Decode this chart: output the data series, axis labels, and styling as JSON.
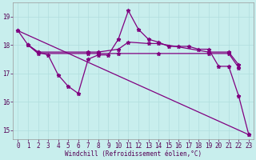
{
  "background_color": "#c8eeed",
  "line_color": "#800080",
  "grid_color": "#b0dede",
  "xlabel": "Windchill (Refroidissement éolien,°C)",
  "xlim": [
    -0.5,
    23.5
  ],
  "ylim": [
    14.7,
    19.5
  ],
  "yticks": [
    15,
    16,
    17,
    18,
    19
  ],
  "xticks": [
    0,
    1,
    2,
    3,
    4,
    5,
    6,
    7,
    8,
    9,
    10,
    11,
    12,
    13,
    14,
    15,
    16,
    17,
    18,
    19,
    20,
    21,
    22,
    23
  ],
  "series1_x": [
    0,
    1,
    2,
    3,
    4,
    5,
    6,
    7,
    8,
    9,
    10,
    11,
    12,
    13,
    14,
    15,
    16,
    17,
    18,
    19,
    20,
    21,
    22,
    23
  ],
  "series1_y": [
    18.5,
    18.0,
    17.75,
    17.65,
    16.95,
    16.55,
    16.3,
    17.5,
    17.65,
    17.65,
    18.2,
    19.2,
    18.55,
    18.2,
    18.1,
    17.95,
    17.95,
    17.95,
    17.85,
    17.85,
    17.25,
    17.25,
    16.2,
    14.85
  ],
  "series2_x": [
    1,
    2,
    7,
    8,
    10,
    11,
    13,
    14,
    19,
    21,
    22
  ],
  "series2_y": [
    18.0,
    17.75,
    17.75,
    17.75,
    17.85,
    18.1,
    18.05,
    18.05,
    17.75,
    17.75,
    17.3
  ],
  "series3_x": [
    1,
    2,
    7,
    8,
    10,
    14,
    19,
    21,
    22
  ],
  "series3_y": [
    18.0,
    17.7,
    17.7,
    17.7,
    17.7,
    17.7,
    17.7,
    17.7,
    17.2
  ],
  "series4_x": [
    0,
    23
  ],
  "series4_y": [
    18.5,
    14.85
  ]
}
